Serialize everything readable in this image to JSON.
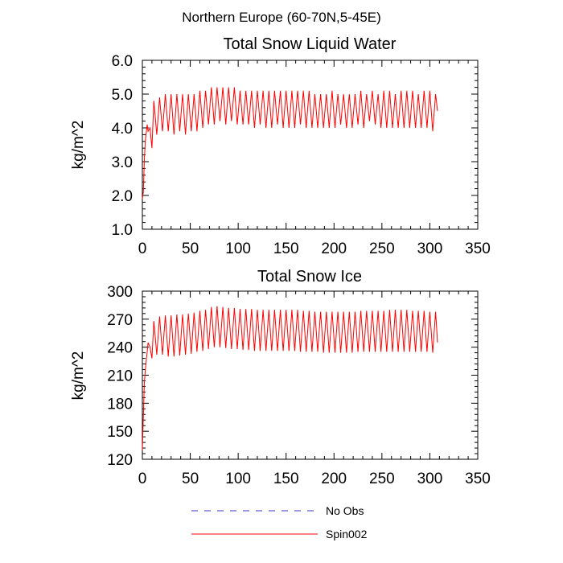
{
  "figure": {
    "title": "Northern Europe (60-70N,5-45E)"
  },
  "legend": {
    "placement": "bottom",
    "items": [
      {
        "label": "No Obs",
        "color": "#3030c0",
        "style": "dashed"
      },
      {
        "label": "Spin002",
        "color": "#ff0000",
        "style": "solid"
      }
    ]
  },
  "chart_data": [
    {
      "type": "line",
      "title": "Total Snow Liquid Water",
      "ylabel": "kg/m^2",
      "xlim": [
        0,
        350
      ],
      "ylim": [
        1.0,
        6.0
      ],
      "xticks": [
        0,
        50,
        100,
        150,
        200,
        250,
        300,
        350
      ],
      "yticks": [
        1.0,
        2.0,
        3.0,
        4.0,
        5.0,
        6.0
      ],
      "ytick_labels": [
        "1.0",
        "2.0",
        "3.0",
        "4.0",
        "5.0",
        "6.0"
      ],
      "series": [
        {
          "name": "Spin002",
          "color": "#ff0000",
          "x": [
            0,
            1,
            2,
            3,
            5,
            6,
            8,
            10,
            12,
            15,
            18,
            21,
            24,
            27,
            30,
            33,
            36,
            39,
            42,
            45,
            48,
            51,
            54,
            57,
            60,
            63,
            66,
            69,
            72,
            75,
            78,
            81,
            84,
            87,
            90,
            93,
            96,
            99,
            102,
            105,
            108,
            111,
            114,
            117,
            120,
            123,
            126,
            129,
            132,
            135,
            138,
            141,
            144,
            147,
            150,
            153,
            156,
            159,
            162,
            165,
            168,
            171,
            174,
            177,
            180,
            183,
            186,
            189,
            192,
            195,
            198,
            201,
            204,
            207,
            210,
            213,
            216,
            219,
            222,
            225,
            228,
            231,
            234,
            237,
            240,
            243,
            246,
            249,
            252,
            255,
            258,
            261,
            264,
            267,
            270,
            273,
            276,
            279,
            282,
            285,
            288,
            291,
            294,
            297,
            300,
            303,
            306,
            308
          ],
          "y": [
            1.9,
            2.1,
            3.0,
            3.6,
            4.1,
            3.9,
            4.0,
            3.4,
            4.8,
            3.8,
            4.9,
            3.9,
            5.0,
            3.9,
            5.0,
            3.8,
            5.0,
            3.9,
            5.0,
            3.8,
            5.0,
            3.9,
            5.0,
            3.9,
            5.1,
            4.0,
            5.1,
            4.1,
            5.2,
            4.1,
            5.2,
            4.2,
            5.2,
            4.1,
            5.2,
            4.2,
            5.2,
            4.1,
            5.1,
            4.1,
            5.1,
            4.1,
            5.1,
            4.0,
            5.1,
            4.1,
            5.1,
            4.0,
            5.1,
            4.0,
            5.1,
            4.1,
            5.1,
            4.0,
            5.1,
            4.0,
            5.1,
            4.0,
            5.1,
            4.1,
            5.1,
            4.0,
            5.1,
            4.0,
            5.0,
            4.0,
            5.0,
            4.0,
            5.0,
            4.0,
            5.1,
            4.0,
            5.0,
            4.1,
            5.0,
            4.0,
            5.0,
            4.0,
            5.0,
            4.1,
            5.1,
            4.0,
            5.0,
            4.2,
            5.1,
            4.1,
            5.0,
            4.0,
            5.1,
            4.0,
            5.1,
            4.0,
            5.0,
            4.0,
            5.1,
            4.0,
            5.1,
            4.0,
            5.1,
            4.0,
            5.0,
            4.0,
            5.1,
            4.0,
            5.1,
            3.9,
            5.0,
            4.5
          ]
        }
      ]
    },
    {
      "type": "line",
      "title": "Total Snow Ice",
      "ylabel": "kg/m^2",
      "xlim": [
        0,
        350
      ],
      "ylim": [
        120,
        300
      ],
      "xticks": [
        0,
        50,
        100,
        150,
        200,
        250,
        300,
        350
      ],
      "yticks": [
        120,
        150,
        180,
        210,
        240,
        270,
        300
      ],
      "ytick_labels": [
        "120",
        "150",
        "180",
        "210",
        "240",
        "270",
        "300"
      ],
      "series": [
        {
          "name": "Spin002",
          "color": "#ff0000",
          "x": [
            0,
            1,
            2,
            3,
            5,
            6,
            8,
            10,
            12,
            15,
            18,
            21,
            24,
            27,
            30,
            33,
            36,
            39,
            42,
            45,
            48,
            51,
            54,
            57,
            60,
            63,
            66,
            69,
            72,
            75,
            78,
            81,
            84,
            87,
            90,
            93,
            96,
            99,
            102,
            105,
            108,
            111,
            114,
            117,
            120,
            123,
            126,
            129,
            132,
            135,
            138,
            141,
            144,
            147,
            150,
            153,
            156,
            159,
            162,
            165,
            168,
            171,
            174,
            177,
            180,
            183,
            186,
            189,
            192,
            195,
            198,
            201,
            204,
            207,
            210,
            213,
            216,
            219,
            222,
            225,
            228,
            231,
            234,
            237,
            240,
            243,
            246,
            249,
            252,
            255,
            258,
            261,
            264,
            267,
            270,
            273,
            276,
            279,
            282,
            285,
            288,
            291,
            294,
            297,
            300,
            303,
            306,
            308
          ],
          "y": [
            130,
            165,
            200,
            215,
            235,
            245,
            240,
            228,
            268,
            232,
            273,
            232,
            274,
            230,
            274,
            230,
            275,
            231,
            275,
            232,
            276,
            233,
            277,
            235,
            279,
            236,
            280,
            238,
            283,
            240,
            284,
            240,
            283,
            239,
            282,
            238,
            282,
            238,
            281,
            237,
            281,
            237,
            281,
            236,
            280,
            236,
            280,
            236,
            280,
            236,
            280,
            236,
            280,
            236,
            280,
            236,
            280,
            236,
            280,
            235,
            279,
            235,
            279,
            235,
            278,
            235,
            278,
            234,
            278,
            234,
            278,
            234,
            278,
            234,
            278,
            234,
            278,
            234,
            278,
            235,
            279,
            235,
            279,
            235,
            279,
            235,
            279,
            235,
            279,
            235,
            280,
            235,
            280,
            235,
            280,
            235,
            280,
            235,
            279,
            235,
            279,
            235,
            279,
            235,
            278,
            234,
            278,
            245
          ]
        }
      ]
    }
  ]
}
